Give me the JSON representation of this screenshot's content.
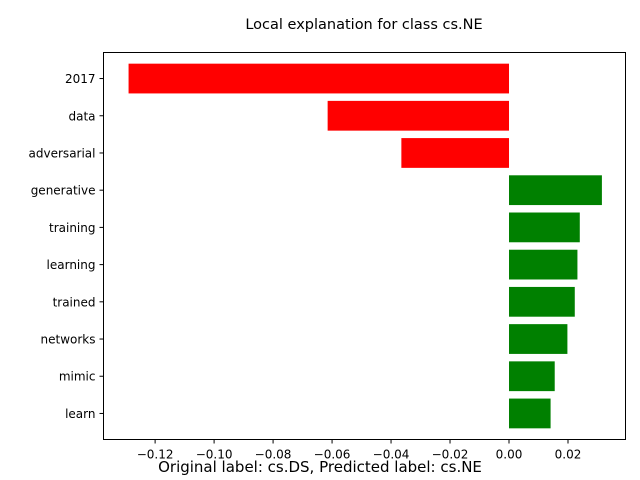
{
  "chart_data": {
    "type": "bar",
    "orientation": "horizontal",
    "title": "Local explanation for class cs.NE",
    "categories": [
      "2017",
      "data",
      "adversarial",
      "generative",
      "training",
      "learning",
      "trained",
      "networks",
      "mimic",
      "learn"
    ],
    "values": [
      -0.129,
      -0.0615,
      -0.0365,
      0.0315,
      0.024,
      0.0232,
      0.0223,
      0.0198,
      0.0155,
      0.0141
    ],
    "xlim": [
      -0.1375,
      0.0395
    ],
    "xticks": [
      -0.12,
      -0.1,
      -0.08,
      -0.06,
      -0.04,
      -0.02,
      0.0,
      0.02
    ],
    "xtick_labels": [
      "−0.12",
      "−0.10",
      "−0.08",
      "−0.06",
      "−0.04",
      "−0.02",
      "0.00",
      "0.02"
    ],
    "grid": false,
    "colors": {
      "negative": "#ff0000",
      "positive": "#008000"
    }
  },
  "caption": "Original label: cs.DS, Predicted label: cs.NE"
}
